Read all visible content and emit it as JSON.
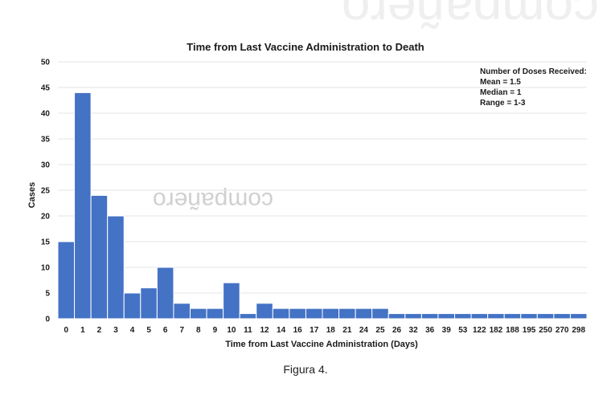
{
  "watermark": "compañero",
  "caption": "Figura 4.",
  "chart_data": {
    "type": "bar",
    "title": "Time from Last Vaccine Administration to Death",
    "xlabel": "Time from Last Vaccine Administration (Days)",
    "ylabel": "Cases",
    "ylim": [
      0,
      50
    ],
    "yticks": [
      0,
      5,
      10,
      15,
      20,
      25,
      30,
      35,
      40,
      45,
      50
    ],
    "grid": true,
    "bar_color": "#4472c4",
    "categories": [
      "0",
      "1",
      "2",
      "3",
      "4",
      "5",
      "6",
      "7",
      "8",
      "9",
      "10",
      "11",
      "12",
      "14",
      "16",
      "17",
      "18",
      "21",
      "24",
      "25",
      "26",
      "32",
      "36",
      "39",
      "53",
      "122",
      "182",
      "188",
      "195",
      "250",
      "270",
      "298"
    ],
    "values": [
      15,
      44,
      24,
      20,
      5,
      6,
      10,
      3,
      2,
      2,
      7,
      1,
      3,
      2,
      2,
      2,
      2,
      2,
      2,
      2,
      1,
      1,
      1,
      1,
      1,
      1,
      1,
      1,
      1,
      1,
      1,
      1
    ],
    "annotation": [
      "Number of Doses Received:",
      "Mean = 1.5",
      "Median = 1",
      "Range = 1-3"
    ]
  }
}
